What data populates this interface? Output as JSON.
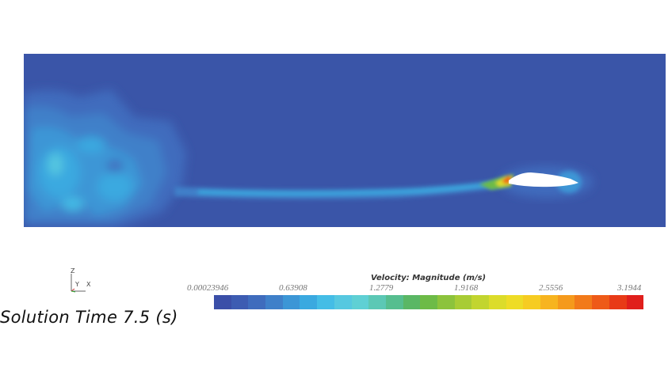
{
  "solution_time": "Solution Time 7.5 (s)",
  "axes": {
    "z": "Z",
    "y": "Y",
    "x": "X"
  },
  "legend": {
    "title": "Velocity: Magnitude (m/s)",
    "min": 0.00023946,
    "max": 3.1944,
    "ticks": [
      "0.00023946",
      "0.63908",
      "1.2779",
      "1.9168",
      "2.5556",
      "3.1944"
    ],
    "colors": [
      "#3b4fa8",
      "#3d5cb2",
      "#3f6cbd",
      "#3f80c9",
      "#3c96d6",
      "#3aa9e0",
      "#44bde6",
      "#56c8e0",
      "#5fd0d4",
      "#5cc8b5",
      "#56be8f",
      "#5ab765",
      "#6dbb47",
      "#8cc33c",
      "#a8cc35",
      "#c2d52f",
      "#dcdc2a",
      "#eedc26",
      "#f6cc22",
      "#f7b41f",
      "#f59a1c",
      "#f27a1a",
      "#ee5a18",
      "#e83a17",
      "#e01f1c"
    ]
  },
  "field": {
    "background_color": "#3a55a8",
    "body_color": "#ffffff"
  }
}
